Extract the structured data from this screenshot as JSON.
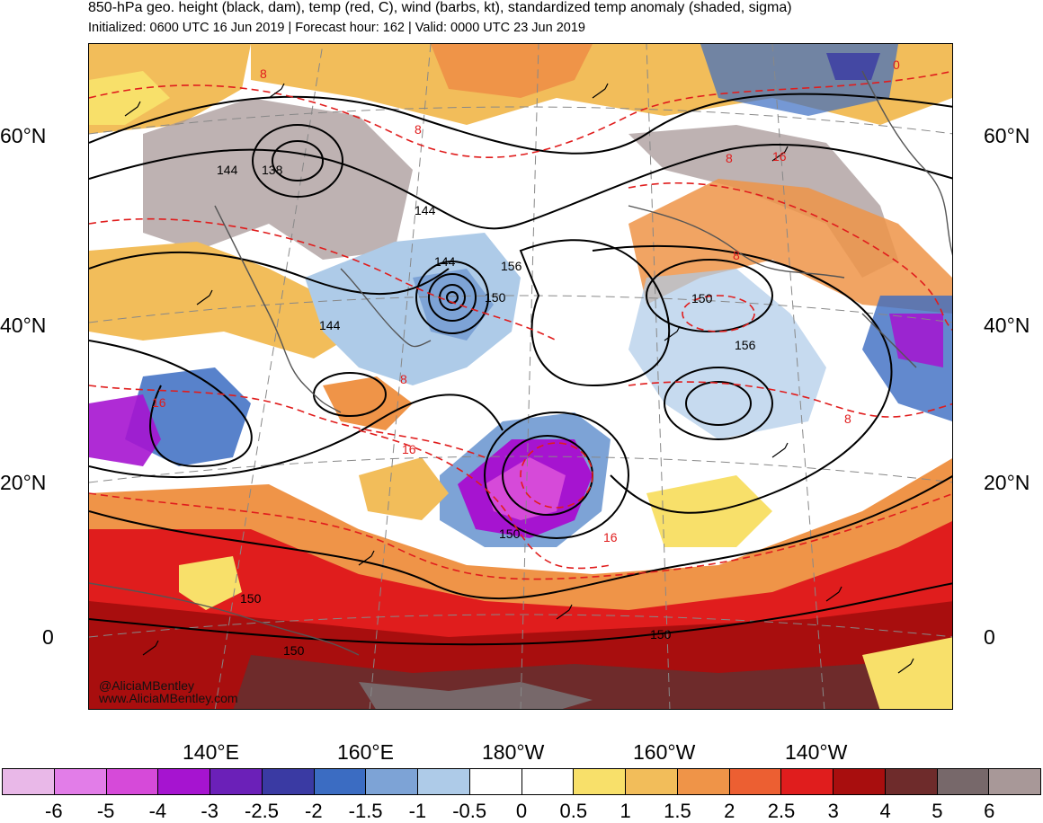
{
  "header": {
    "title": "850-hPa geo. height (black, dam), temp (red, C), wind (barbs, kt), standardized temp anomaly (shaded, sigma)",
    "subtitle": "Initialized: 0600 UTC 16 Jun 2019 | Forecast hour: 162 | Valid: 0000 UTC 23 Jun 2019"
  },
  "axes": {
    "lat_labels": [
      "60°N",
      "40°N",
      "20°N",
      "0"
    ],
    "lon_labels": [
      "140°E",
      "160°E",
      "180°W",
      "160°W",
      "140°W"
    ]
  },
  "contour_labels": {
    "height": [
      "144",
      "138",
      "144",
      "144",
      "156",
      "150",
      "144",
      "150",
      "156",
      "150",
      "150",
      "150",
      "150"
    ],
    "temp": [
      "8",
      "8",
      "8",
      "8",
      "8",
      "16",
      "16",
      "8",
      "16",
      "16",
      "0"
    ]
  },
  "credits": {
    "twitter": "@AliciaMBentley",
    "website": "www.AliciaMBentley.com"
  },
  "colorbar": {
    "colors": [
      "#e9b8e8",
      "#e27de8",
      "#d64ad9",
      "#a614d0",
      "#6b20b8",
      "#3a3aa3",
      "#3b6cc2",
      "#7da3d6",
      "#aecbe8",
      "#ffffff",
      "#ffffff",
      "#f8e06a",
      "#f2bd5a",
      "#ef9448",
      "#ec5f32",
      "#e01d1d",
      "#a80e0e",
      "#6e2b2b",
      "#77686a",
      "#a89898"
    ],
    "tick_labels": [
      "-6",
      "-5",
      "-4",
      "-3",
      "-2.5",
      "-2",
      "-1.5",
      "-1",
      "-0.5",
      "0",
      "0.5",
      "1",
      "1.5",
      "2",
      "2.5",
      "3",
      "4",
      "5",
      "6"
    ]
  }
}
